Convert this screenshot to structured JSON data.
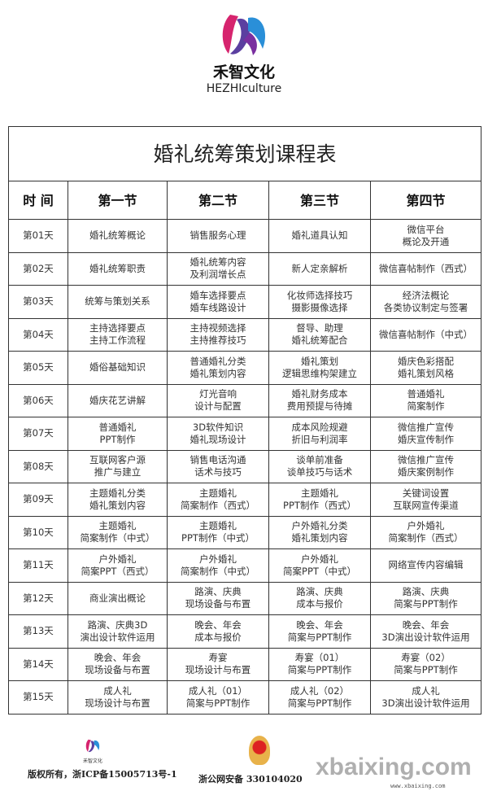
{
  "brand": {
    "name": "禾智文化",
    "name_en": "HEZHIculture"
  },
  "table": {
    "title": "婚礼统筹策划课程表",
    "headers": [
      "时 间",
      "第一节",
      "第二节",
      "第三节",
      "第四节"
    ],
    "rows": [
      [
        "第01天",
        "婚礼统筹概论",
        "销售服务心理",
        "婚礼道具认知",
        "微信平台\n概论及开通"
      ],
      [
        "第02天",
        "婚礼统筹职责",
        "婚礼统筹内容\n及利润增长点",
        "新人定亲解析",
        "微信喜帖制作（西式）"
      ],
      [
        "第03天",
        "统筹与策划关系",
        "婚车选择要点\n婚车线路设计",
        "化妆师选择技巧\n摄影摄像选择",
        "经济法概论\n各类协议制定与签署"
      ],
      [
        "第04天",
        "主持选择要点\n主持工作流程",
        "主持视频选择\n主持推荐技巧",
        "督导、助理\n婚礼统筹配合",
        "微信喜帖制作（中式）"
      ],
      [
        "第05天",
        "婚俗基础知识",
        "普通婚礼分类\n婚礼策划内容",
        "婚礼策划\n逻辑思维构架建立",
        "婚庆色彩搭配\n婚礼策划风格"
      ],
      [
        "第06天",
        "婚庆花艺讲解",
        "灯光音响\n设计与配置",
        "婚礼财务成本\n费用预提与待摊",
        "普通婚礼\n简案制作"
      ],
      [
        "第07天",
        "普通婚礼\nPPT制作",
        "3D软件知识\n婚礼现场设计",
        "成本风险规避\n折旧与利润率",
        "微信推广宣传\n婚庆宣传制作"
      ],
      [
        "第08天",
        "互联网客户源\n推广与建立",
        "销售电话沟通\n话术与技巧",
        "谈单前准备\n谈单技巧与话术",
        "微信推广宣传\n婚庆案例制作"
      ],
      [
        "第09天",
        "主题婚礼分类\n婚礼策划内容",
        "主题婚礼\n简案制作（西式）",
        "主题婚礼\nPPT制作（西式）",
        "关键词设置\n互联网宣传渠道"
      ],
      [
        "第10天",
        "主题婚礼\n简案制作（中式）",
        "主题婚礼\nPPT制作（中式）",
        "户外婚礼分类\n婚礼策划内容",
        "户外婚礼\n简案制作（西式）"
      ],
      [
        "第11天",
        "户外婚礼\n简案PPT（西式）",
        "户外婚礼\n简案制作（中式）",
        "户外婚礼\n简案PPT（中式）",
        "网络宣传内容编辑"
      ],
      [
        "第12天",
        "商业演出概论",
        "路演、庆典\n现场设备与布置",
        "路演、庆典\n成本与报价",
        "路演、庆典\n简案与PPT制作"
      ],
      [
        "第13天",
        "路演、庆典3D\n演出设计软件运用",
        "晚会、年会\n成本与报价",
        "晚会、年会\n简案与PPT制作",
        "晚会、年会\n3D演出设计软件运用"
      ],
      [
        "第14天",
        "晚会、年会\n现场设备与布置",
        "寿宴\n现场设计与布置",
        "寿宴（01）\n简案与PPT制作",
        "寿宴（02）\n简案与PPT制作"
      ],
      [
        "第15天",
        "成人礼\n现场设计与布置",
        "成人礼（01）\n简案与PPT制作",
        "成人礼（02）\n简案与PPT制作",
        "成人礼\n3D演出设计软件运用"
      ]
    ]
  },
  "footer": {
    "copyright": "版权所有，浙ICP备15005713号-1",
    "police": "浙公网安备 330104020",
    "watermark": "xbaixing.com",
    "watermark_url": "www.xbaixing.com"
  }
}
